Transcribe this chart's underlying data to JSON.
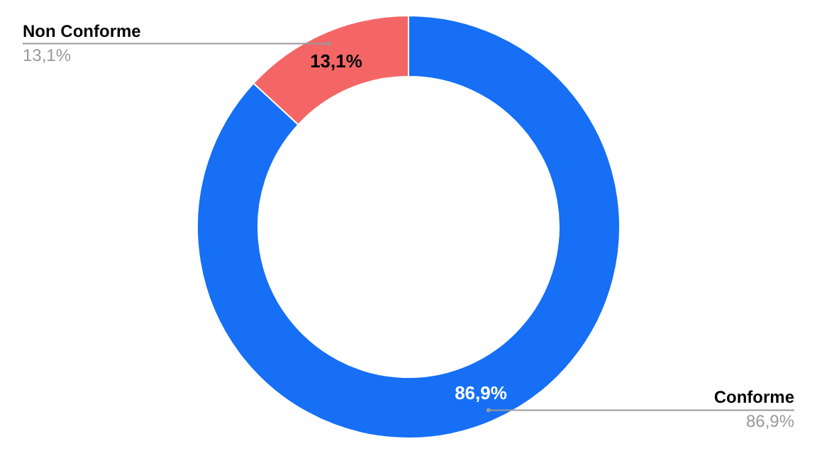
{
  "chart_data": {
    "type": "donut",
    "categories": [
      "Conforme",
      "Non Conforme"
    ],
    "values": [
      86.9,
      13.1
    ],
    "colors": [
      "#166ff5",
      "#f46666"
    ],
    "value_labels": [
      "86,9%",
      "13,1%"
    ]
  }
}
